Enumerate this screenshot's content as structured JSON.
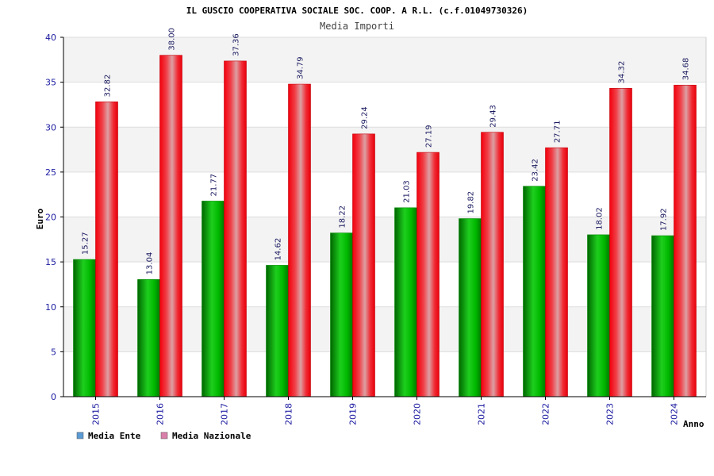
{
  "chart_data": {
    "type": "bar",
    "title": "IL GUSCIO COOPERATIVA SOCIALE SOC. COOP. A R.L. (c.f.01049730326)",
    "subtitle": "Media Importi",
    "xlabel": "Anno",
    "ylabel": "Euro",
    "ylim": [
      0,
      40
    ],
    "yticks": [
      0,
      5,
      10,
      15,
      20,
      25,
      30,
      35,
      40
    ],
    "grid": true,
    "legend_position": "bottom-left",
    "categories": [
      "2015",
      "2016",
      "2017",
      "2018",
      "2019",
      "2020",
      "2021",
      "2022",
      "2023",
      "2024"
    ],
    "series": [
      {
        "name": "Media Ente",
        "values": [
          15.27,
          13.04,
          21.77,
          14.62,
          18.22,
          21.03,
          19.82,
          23.42,
          18.02,
          17.92
        ],
        "labels": [
          "15.27",
          "13.04",
          "21.77",
          "14.62",
          "18.22",
          "21.03",
          "19.82",
          "23.42",
          "18.02",
          "17.92"
        ],
        "color": "#00b000",
        "legend_color": "#5b9bd5"
      },
      {
        "name": "Media Nazionale",
        "values": [
          32.82,
          38.0,
          37.36,
          34.79,
          29.24,
          27.19,
          29.43,
          27.71,
          34.32,
          34.68
        ],
        "labels": [
          "32.82",
          "38.00",
          "37.36",
          "34.79",
          "29.24",
          "27.19",
          "29.43",
          "27.71",
          "34.32",
          "34.68"
        ],
        "color": "#e8101a",
        "legend_color": "#d97fa9"
      }
    ]
  }
}
